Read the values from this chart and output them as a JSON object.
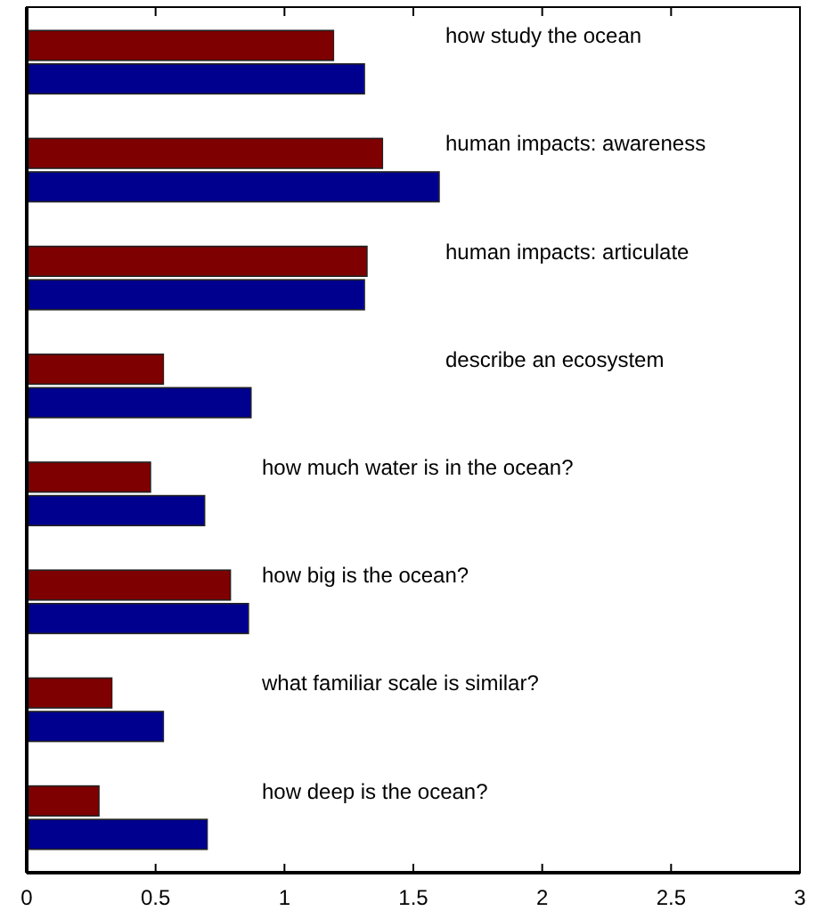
{
  "chart_data": {
    "type": "bar",
    "orientation": "horizontal",
    "categories": [
      "how study the ocean",
      "human impacts: awareness",
      "human impacts: articulate",
      "describe an ecosystem",
      "how much water is in the ocean?",
      "how big is the ocean?",
      "what familiar scale is similar?",
      "how deep is the ocean?"
    ],
    "series": [
      {
        "color": "#7f0000",
        "values": [
          1.19,
          1.38,
          1.32,
          0.53,
          0.48,
          0.79,
          0.33,
          0.28
        ]
      },
      {
        "color": "#00008f",
        "values": [
          1.31,
          1.6,
          1.31,
          0.87,
          0.69,
          0.86,
          0.53,
          0.7
        ]
      }
    ],
    "xlim": [
      0,
      3
    ],
    "xticks": [
      0,
      0.5,
      1,
      1.5,
      2,
      2.5,
      3
    ],
    "grid": false
  }
}
